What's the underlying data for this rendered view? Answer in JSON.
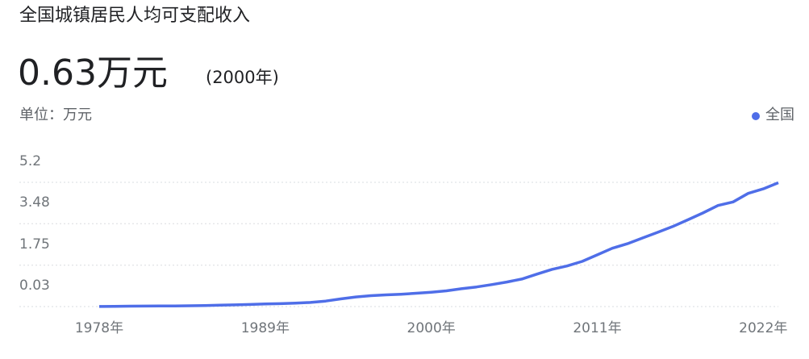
{
  "chart_data": {
    "type": "line",
    "title": "全国城镇居民人均可支配收入",
    "headline_value": "0.63万元",
    "headline_note": "(2000年)",
    "unit_label": "单位：万元",
    "x": [
      1978,
      1979,
      1980,
      1981,
      1982,
      1983,
      1984,
      1985,
      1986,
      1987,
      1988,
      1989,
      1990,
      1991,
      1992,
      1993,
      1994,
      1995,
      1996,
      1997,
      1998,
      1999,
      2000,
      2001,
      2002,
      2003,
      2004,
      2005,
      2006,
      2007,
      2008,
      2009,
      2010,
      2011,
      2012,
      2013,
      2014,
      2015,
      2016,
      2017,
      2018,
      2019,
      2020,
      2021,
      2022,
      2023
    ],
    "series": [
      {
        "name": "全国",
        "color": "#4f6ee8",
        "values": [
          0.0343,
          0.0405,
          0.0478,
          0.05,
          0.0535,
          0.0565,
          0.0652,
          0.0739,
          0.09,
          0.1002,
          0.118,
          0.1374,
          0.151,
          0.17,
          0.2027,
          0.2577,
          0.3496,
          0.4283,
          0.4839,
          0.516,
          0.5425,
          0.5854,
          0.628,
          0.686,
          0.7703,
          0.8472,
          0.9422,
          1.0493,
          1.1759,
          1.3786,
          1.5781,
          1.7175,
          1.9109,
          2.181,
          2.4565,
          2.6467,
          2.8844,
          3.1195,
          3.3616,
          3.6396,
          3.9251,
          4.2359,
          4.3834,
          4.7412,
          4.9283,
          5.1821
        ]
      }
    ],
    "xlim": [
      1978,
      2023
    ],
    "xticks": [
      {
        "value": 1978,
        "label": "1978年"
      },
      {
        "value": 1989,
        "label": "1989年"
      },
      {
        "value": 2000,
        "label": "2000年"
      },
      {
        "value": 2011,
        "label": "2011年"
      },
      {
        "value": 2022,
        "label": "2022年"
      }
    ],
    "ylim": [
      0.03,
      5.2
    ],
    "yticks": [
      5.2,
      3.48,
      1.75,
      0.03
    ],
    "grid": true,
    "legend": "top-right"
  }
}
